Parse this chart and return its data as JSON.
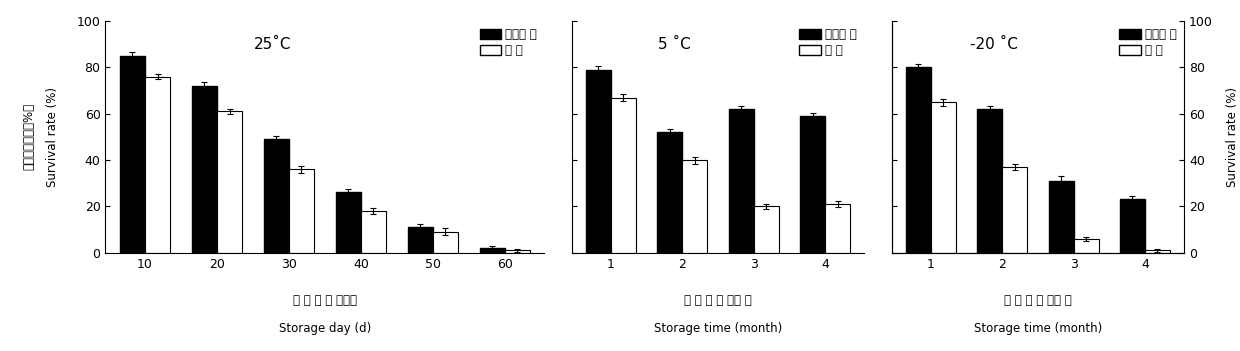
{
  "panel1": {
    "title": "25˚C",
    "xlabel_cn": "贮 藏 时 间 （天）",
    "xlabel_en": "Storage day (d)",
    "categories": [
      "10",
      "20",
      "30",
      "40",
      "50",
      "60"
    ],
    "black_vals": [
      85,
      72,
      49,
      26,
      11,
      2
    ],
    "white_vals": [
      76,
      61,
      36,
      18,
      9,
      1
    ],
    "black_err": [
      1.5,
      1.5,
      1.5,
      1.5,
      1.5,
      0.8
    ],
    "white_err": [
      1.2,
      1.2,
      1.5,
      1.5,
      1.5,
      0.5
    ]
  },
  "panel2": {
    "title": "5 ˚C",
    "xlabel_cn": "贮 藏 时 间 （月 ）",
    "xlabel_en": "Storage time (month)",
    "categories": [
      "1",
      "2",
      "3",
      "4"
    ],
    "black_vals": [
      79,
      52,
      62,
      59
    ],
    "white_vals": [
      67,
      40,
      20,
      21
    ],
    "black_err": [
      1.5,
      1.5,
      1.5,
      1.5
    ],
    "white_err": [
      1.5,
      1.5,
      1.2,
      1.2
    ]
  },
  "panel3": {
    "title": "-20 ˚C",
    "xlabel_cn": "贮 藏 时 间 （月 ）",
    "xlabel_en": "Storage time (month)",
    "categories": [
      "1",
      "2",
      "3",
      "4"
    ],
    "black_vals": [
      80,
      62,
      31,
      23
    ],
    "white_vals": [
      65,
      37,
      6,
      1
    ],
    "black_err": [
      1.5,
      1.5,
      2.0,
      1.5
    ],
    "white_err": [
      1.5,
      1.5,
      1.0,
      0.5
    ]
  },
  "ylabel_left_cn": "酵母菌存活率（%）",
  "ylabel_left_en": "Survival rate (%)",
  "ylabel_right_cn": "酵母菌存活率（%）",
  "ylabel_right_en": "Survival rate (%)",
  "legend_black": "液体菌 剂",
  "legend_white": "对 照",
  "ylim": [
    0,
    100
  ],
  "yticks": [
    0,
    20,
    40,
    60,
    80,
    100
  ],
  "bar_width": 0.35,
  "black_color": "#000000",
  "white_color": "#ffffff",
  "white_edge": "#000000"
}
